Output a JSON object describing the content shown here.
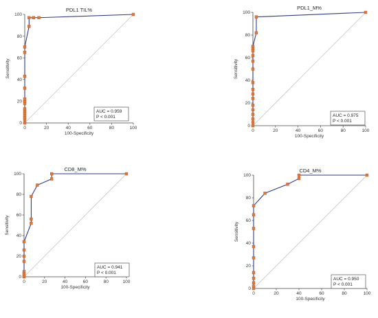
{
  "chart_data": [
    {
      "type": "line",
      "title": "PDL1 TIL%",
      "xlabel": "100-Specificity",
      "ylabel": "Sensitivity",
      "xlim": [
        0,
        100
      ],
      "ylim": [
        0,
        100
      ],
      "xticks": [
        "0",
        "20",
        "40",
        "60",
        "80",
        "100"
      ],
      "yticks": [
        "0",
        "20",
        "40",
        "60",
        "80",
        "100"
      ],
      "legend_position": "bottom-right",
      "annotations": [
        "AUC = 0.959",
        "P < 0.001"
      ],
      "x": [
        0,
        0,
        0,
        0,
        0,
        0,
        0,
        0,
        0,
        0,
        0,
        0,
        0,
        0,
        4,
        4,
        8,
        8,
        13,
        100
      ],
      "y": [
        0,
        3,
        5,
        7,
        9,
        11,
        13,
        18,
        20,
        22,
        32,
        43,
        65,
        70,
        89,
        97,
        97,
        97,
        97,
        100
      ]
    },
    {
      "type": "line",
      "title": "PDL1_M%",
      "xlabel": "100-Specificity",
      "ylabel": "Sensitivity",
      "xlim": [
        0,
        100
      ],
      "ylim": [
        0,
        100
      ],
      "xticks": [
        "0",
        "20",
        "40",
        "60",
        "80",
        "100"
      ],
      "yticks": [
        "0",
        "20",
        "40",
        "60",
        "80",
        "100"
      ],
      "legend_position": "bottom-right",
      "annotations": [
        "AUC = 0.975",
        "P < 0.001"
      ],
      "x": [
        0,
        0,
        0,
        0,
        0,
        0,
        0,
        0,
        0,
        0,
        0,
        0,
        0,
        0,
        0,
        0,
        3,
        3,
        100
      ],
      "y": [
        0,
        3,
        6,
        10,
        14,
        18,
        24,
        28,
        32,
        38,
        50,
        57,
        62,
        66,
        68,
        70,
        82,
        96,
        100
      ]
    },
    {
      "type": "line",
      "title": "CD8_M%",
      "xlabel": "100-Specificity",
      "ylabel": "Sensitivity",
      "xlim": [
        0,
        100
      ],
      "ylim": [
        0,
        100
      ],
      "xticks": [
        "0",
        "20",
        "40",
        "60",
        "80",
        "100"
      ],
      "yticks": [
        "0",
        "20",
        "40",
        "60",
        "80",
        "100"
      ],
      "legend_position": "bottom-right",
      "annotations": [
        "AUC = 0.941",
        "P < 0.001"
      ],
      "x": [
        0,
        0,
        0,
        0,
        0,
        0,
        0,
        0,
        7,
        7,
        7,
        13,
        27,
        27,
        100
      ],
      "y": [
        0,
        1,
        3,
        5,
        15,
        20,
        26,
        34,
        52,
        56,
        78,
        89,
        95,
        100,
        100
      ]
    },
    {
      "type": "line",
      "title": "CD4_M%",
      "xlabel": "100-Specificity",
      "ylabel": "Sensitivity",
      "xlim": [
        0,
        100
      ],
      "ylim": [
        0,
        100
      ],
      "xticks": [
        "0",
        "20",
        "40",
        "60",
        "80",
        "100"
      ],
      "yticks": [
        "0",
        "20",
        "40",
        "60",
        "80",
        "100"
      ],
      "legend_position": "bottom-right",
      "annotations": [
        "AUC = 0.950",
        "P < 0.001"
      ],
      "x": [
        0,
        0,
        0,
        0,
        0,
        0,
        0,
        0,
        0,
        0,
        10,
        30,
        40,
        40,
        100
      ],
      "y": [
        0,
        2,
        5,
        9,
        14,
        27,
        37,
        53,
        65,
        73,
        84,
        92,
        97,
        100,
        100
      ]
    }
  ]
}
